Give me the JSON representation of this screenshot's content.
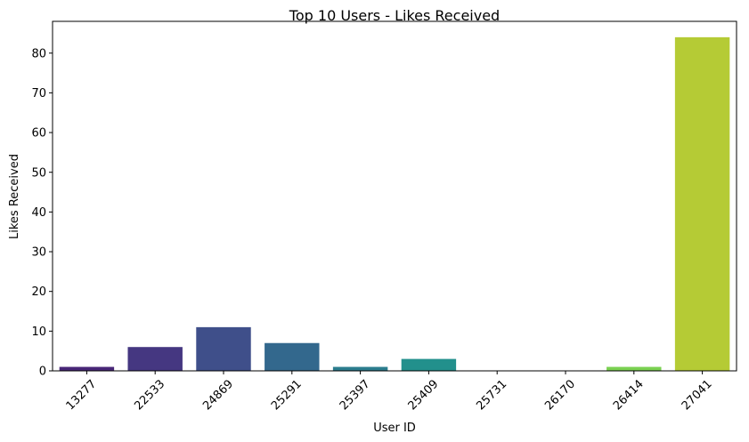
{
  "chart_data": {
    "type": "bar",
    "title": "Top 10 Users - Likes Received",
    "xlabel": "User ID",
    "ylabel": "Likes Received",
    "categories": [
      "13277",
      "22533",
      "24869",
      "25291",
      "25397",
      "25409",
      "25731",
      "26170",
      "26414",
      "27041"
    ],
    "values": [
      1,
      6,
      11,
      7,
      1,
      3,
      0,
      0,
      1,
      84
    ],
    "ylim": [
      0,
      88
    ],
    "yticks": [
      0,
      10,
      20,
      30,
      40,
      50,
      60,
      70,
      80
    ],
    "colors": [
      "#482677",
      "#453781",
      "#3f4f8a",
      "#33688d",
      "#2b7d8e",
      "#22908c",
      "#1ea58a",
      "#42bd7a",
      "#7ad151",
      "#b5cb35"
    ],
    "grid": false,
    "legend": "none"
  }
}
